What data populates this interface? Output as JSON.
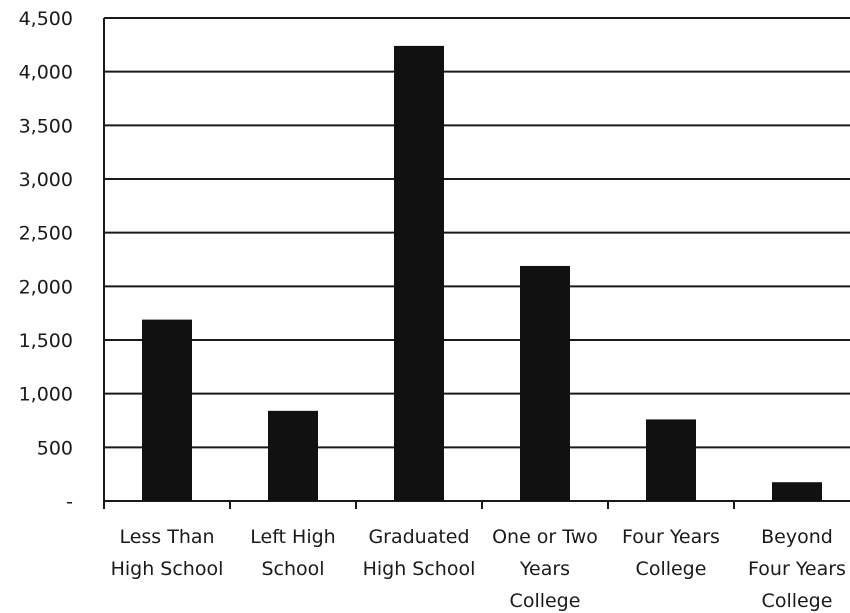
{
  "chart_data": {
    "type": "bar",
    "title": "",
    "xlabel": "",
    "ylabel": "",
    "categories": [
      [
        "Less Than",
        "High School"
      ],
      [
        "Left High",
        "School"
      ],
      [
        "Graduated",
        "High School"
      ],
      [
        "One or Two",
        "Years",
        "College"
      ],
      [
        "Four Years",
        "College"
      ],
      [
        "Beyond",
        "Four Years",
        "College"
      ]
    ],
    "values": [
      1690,
      840,
      4240,
      2190,
      760,
      175
    ],
    "ylim": [
      0,
      4500
    ],
    "yticks": [
      0,
      500,
      1000,
      1500,
      2000,
      2500,
      3000,
      3500,
      4000,
      4500
    ],
    "ytick_labels": [
      "-",
      "500",
      "1,000",
      "1,500",
      "2,000",
      "2,500",
      "3,000",
      "3,500",
      "4,000",
      "4,500"
    ],
    "grid": true,
    "legend": "none",
    "bar_color": "#111111",
    "grid_color": "#1a1a1a"
  }
}
